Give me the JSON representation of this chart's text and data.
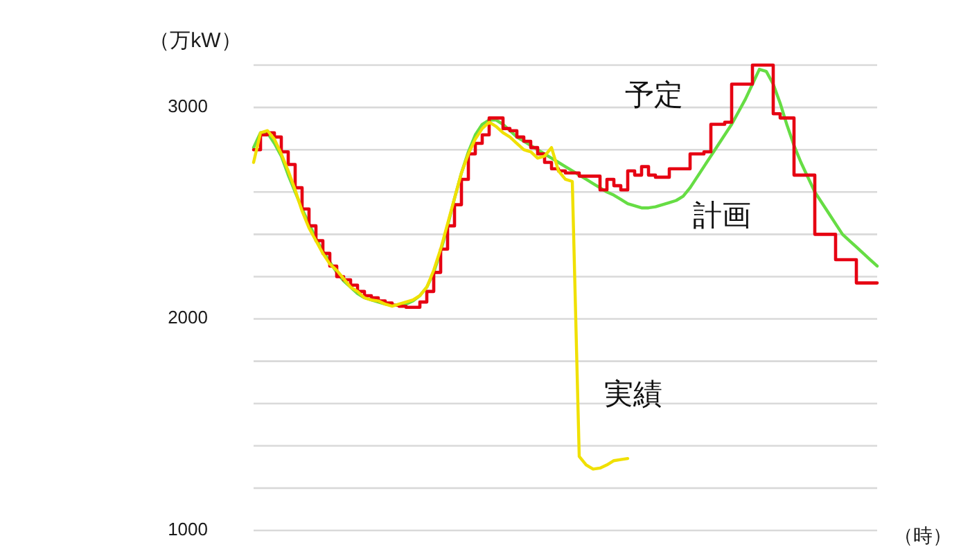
{
  "chart_data": {
    "type": "line",
    "ylabel": "（万kW）",
    "xlabel": "（時）",
    "categories": [
      null,
      null,
      null,
      null,
      null,
      null,
      null,
      null,
      null,
      null,
      null,
      null,
      null,
      null,
      null,
      null,
      null,
      null,
      null,
      null,
      null,
      null,
      null,
      null,
      null,
      null,
      null,
      null,
      null,
      null,
      null,
      null,
      null,
      null,
      null,
      null,
      null,
      null,
      null,
      null,
      null,
      null,
      null,
      null,
      null,
      null,
      null,
      null,
      null,
      null,
      null,
      null,
      null,
      null,
      null,
      null,
      null,
      null,
      null,
      null,
      null,
      null,
      null,
      null,
      null,
      null,
      null,
      null,
      null,
      null,
      null,
      null,
      null,
      null,
      null,
      null,
      null,
      null,
      null,
      null,
      null,
      null,
      null,
      null,
      null,
      null,
      null,
      null,
      null,
      null,
      null
    ],
    "series": [
      {
        "name": "計画",
        "type": "line",
        "color": "#66dd44",
        "values": [
          2810,
          2880,
          2880,
          2830,
          2770,
          2680,
          2600,
          2520,
          2450,
          2380,
          2320,
          2270,
          2220,
          2180,
          2150,
          2120,
          2100,
          2090,
          2080,
          2070,
          2065,
          2065,
          2070,
          2085,
          2110,
          2150,
          2220,
          2320,
          2440,
          2570,
          2690,
          2790,
          2870,
          2920,
          2940,
          2940,
          2920,
          2890,
          2860,
          2840,
          2820,
          2800,
          2780,
          2760,
          2740,
          2720,
          2700,
          2680,
          2660,
          2640,
          2620,
          2600,
          2585,
          2565,
          2545,
          2535,
          2525,
          2525,
          2530,
          2540,
          2550,
          2560,
          2580,
          2620,
          2670,
          2720,
          2770,
          2820,
          2870,
          2920,
          2980,
          3040,
          3110,
          3180,
          3170,
          3110,
          3020,
          2915,
          2820,
          2740,
          2670,
          2600,
          2550,
          2500,
          2450,
          2400,
          2370,
          2340,
          2310,
          2280,
          2250
        ]
      },
      {
        "name": "予定",
        "type": "step",
        "color": "#e60012",
        "values": [
          2800,
          2870,
          2880,
          2860,
          2790,
          2730,
          2620,
          2520,
          2440,
          2370,
          2310,
          2250,
          2200,
          2185,
          2160,
          2130,
          2110,
          2100,
          2085,
          2075,
          2065,
          2060,
          2055,
          2055,
          2080,
          2130,
          2220,
          2330,
          2440,
          2540,
          2660,
          2780,
          2830,
          2870,
          2950,
          2950,
          2900,
          2890,
          2860,
          2840,
          2810,
          2780,
          2740,
          2710,
          2700,
          2690,
          2690,
          2675,
          2675,
          2675,
          2610,
          2660,
          2630,
          2610,
          2700,
          2680,
          2720,
          2680,
          2670,
          2670,
          2710,
          2710,
          2710,
          2780,
          2780,
          2790,
          2920,
          2920,
          2930,
          3110,
          3110,
          3110,
          3200,
          3200,
          3200,
          2970,
          2950,
          2950,
          2680,
          2680,
          2680,
          2400,
          2400,
          2400,
          2280,
          2280,
          2280,
          2170,
          2170,
          2170,
          2170
        ]
      },
      {
        "name": "実績",
        "type": "line",
        "color": "#f0e000",
        "values": [
          2740,
          2880,
          2890,
          2850,
          2780,
          2700,
          2610,
          2510,
          2430,
          2370,
          2310,
          2260,
          2230,
          2190,
          2150,
          2130,
          2100,
          2090,
          2085,
          2070,
          2060,
          2070,
          2080,
          2090,
          2110,
          2150,
          2230,
          2330,
          2450,
          2570,
          2690,
          2780,
          2850,
          2900,
          2930,
          2910,
          2880,
          2860,
          2830,
          2800,
          2790,
          2760,
          2770,
          2810,
          2700,
          2660,
          2650,
          1350,
          1310,
          1290,
          1295,
          1310,
          1330,
          1335,
          1340,
          null,
          null,
          null,
          null,
          null,
          null,
          null,
          null,
          null,
          null,
          null,
          null,
          null,
          null,
          null,
          null,
          null,
          null,
          null,
          null,
          null,
          null,
          null,
          null,
          null,
          null,
          null,
          null,
          null,
          null,
          null,
          null,
          null,
          null,
          null,
          null
        ]
      }
    ],
    "ylim": [
      1000,
      3200
    ],
    "yticks": [
      1000,
      {
        "value": 1200,
        "label": null
      },
      {
        "value": 1400,
        "label": null
      },
      {
        "value": 1600,
        "label": null
      },
      {
        "value": 1800,
        "label": null
      },
      2000,
      {
        "value": 2200,
        "label": null
      },
      {
        "value": 2400,
        "label": null
      },
      {
        "value": 2600,
        "label": null
      },
      {
        "value": 2800,
        "label": null
      },
      3000,
      {
        "value": 3200,
        "label": null
      }
    ],
    "grid": "y",
    "tick_labels": "y"
  }
}
